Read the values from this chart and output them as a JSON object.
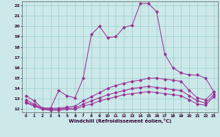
{
  "xlabel": "Windchill (Refroidissement éolien,°C)",
  "xlim": [
    -0.5,
    23.5
  ],
  "ylim": [
    11.7,
    22.4
  ],
  "yticks": [
    12,
    13,
    14,
    15,
    16,
    17,
    18,
    19,
    20,
    21,
    22
  ],
  "xticks": [
    0,
    1,
    2,
    3,
    4,
    5,
    6,
    7,
    8,
    9,
    10,
    11,
    12,
    13,
    14,
    15,
    16,
    17,
    18,
    19,
    20,
    21,
    22,
    23
  ],
  "background_color": "#cce8e8",
  "grid_color": "#99cccc",
  "line_color": "#993399",
  "lines": [
    {
      "x": [
        0,
        1,
        2,
        3,
        4,
        5,
        6,
        7,
        8,
        9,
        10,
        11,
        12,
        13,
        14,
        15,
        16,
        17,
        18,
        19,
        20,
        21,
        22,
        23
      ],
      "y": [
        13.3,
        12.8,
        12.1,
        12.1,
        13.8,
        13.3,
        13.1,
        15.0,
        19.2,
        20.0,
        18.9,
        19.0,
        19.9,
        20.1,
        22.2,
        22.2,
        21.4,
        17.3,
        16.0,
        15.5,
        15.3,
        15.3,
        15.0,
        13.7
      ]
    },
    {
      "x": [
        0,
        1,
        2,
        3,
        4,
        5,
        6,
        7,
        8,
        9,
        10,
        11,
        12,
        13,
        14,
        15,
        16,
        17,
        18,
        19,
        20,
        21,
        22,
        23
      ],
      "y": [
        12.9,
        12.5,
        12.1,
        12.1,
        12.1,
        12.2,
        12.3,
        12.8,
        13.2,
        13.6,
        14.0,
        14.3,
        14.5,
        14.7,
        14.8,
        15.0,
        15.0,
        14.9,
        14.8,
        14.7,
        13.8,
        13.1,
        12.9,
        13.7
      ]
    },
    {
      "x": [
        0,
        1,
        2,
        3,
        4,
        5,
        6,
        7,
        8,
        9,
        10,
        11,
        12,
        13,
        14,
        15,
        16,
        17,
        18,
        19,
        20,
        21,
        22,
        23
      ],
      "y": [
        12.7,
        12.4,
        12.0,
        12.0,
        12.0,
        12.1,
        12.1,
        12.5,
        12.8,
        13.1,
        13.4,
        13.6,
        13.8,
        14.0,
        14.1,
        14.2,
        14.1,
        14.0,
        13.9,
        13.8,
        13.3,
        12.8,
        12.6,
        13.4
      ]
    },
    {
      "x": [
        0,
        1,
        2,
        3,
        4,
        5,
        6,
        7,
        8,
        9,
        10,
        11,
        12,
        13,
        14,
        15,
        16,
        17,
        18,
        19,
        20,
        21,
        22,
        23
      ],
      "y": [
        12.6,
        12.3,
        12.0,
        11.9,
        11.9,
        12.0,
        12.0,
        12.3,
        12.5,
        12.8,
        13.0,
        13.2,
        13.4,
        13.5,
        13.6,
        13.7,
        13.6,
        13.5,
        13.4,
        13.3,
        12.9,
        12.5,
        12.4,
        13.2
      ]
    }
  ]
}
